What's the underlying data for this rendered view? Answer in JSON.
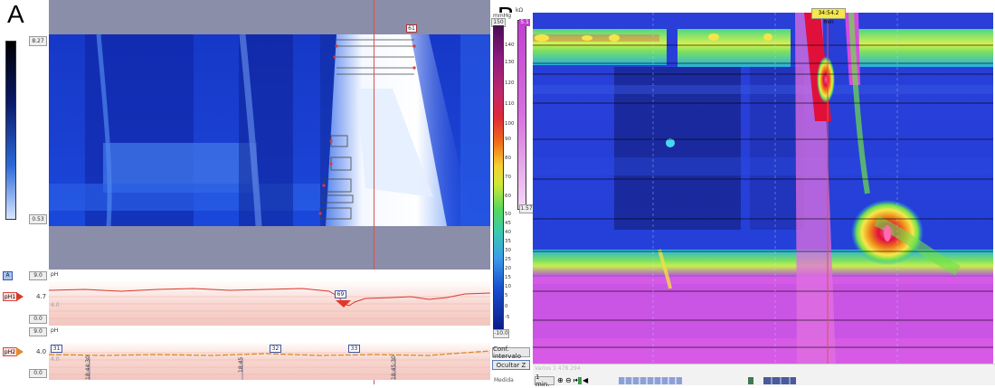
{
  "panel_a": {
    "label": "A",
    "scale": {
      "top_value": "8.27",
      "bottom_value": "0.53"
    },
    "marker_top": "61",
    "ph1": {
      "badge": "A",
      "name": "pH1",
      "top_value": "9.0",
      "value": "4.7",
      "threshold": "4.0",
      "bottom_value": "0.0",
      "axis": "pH",
      "event_marker": "69"
    },
    "ph2": {
      "name": "pH2",
      "top_value": "9.0",
      "value": "4.0",
      "threshold": "4.0",
      "bottom_value": "0.0",
      "axis": "pH",
      "markers": [
        "31",
        "32",
        "33"
      ]
    },
    "times": [
      "18:44:30",
      "18:45",
      "18:45:30"
    ]
  },
  "panel_b": {
    "label": "B",
    "pressure_unit": "mmHg",
    "impedance_unit": "kΩ",
    "scale_max": "150",
    "scale_ticks": [
      "140",
      "130",
      "120",
      "110",
      "100",
      "90",
      "80",
      "70",
      "60",
      "50",
      "45",
      "40",
      "35",
      "30",
      "25",
      "20",
      "15",
      "10",
      "5",
      "0",
      "-5"
    ],
    "scale_min": "-10.0",
    "impedance_top": "5.1",
    "impedance_bottom": "1.57",
    "time_tag": "34:54.2 min",
    "conf_button": "Conf. intervalo",
    "hide_button": "Ocultar Z",
    "interval": "1 min.",
    "faint_text": "Varios 1 478.294",
    "bottom_left": "Medida"
  },
  "colors": {
    "deep_blue": "#0a1a9a",
    "mid_blue": "#1f4fe0",
    "ice": "#eef4ff",
    "gray_band": "#8a8ea8",
    "cursor_red": "#e05050",
    "magenta": "#d24fe0",
    "hot_red": "#e0103a",
    "green": "#6ee04a",
    "yellow": "#f5e84a"
  }
}
